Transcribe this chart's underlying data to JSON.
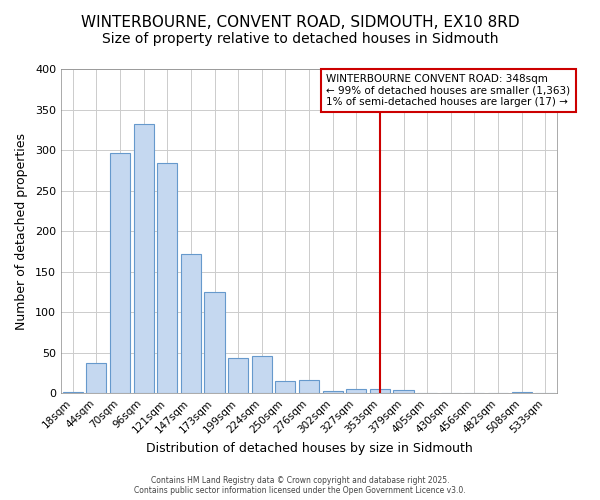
{
  "title": "WINTERBOURNE, CONVENT ROAD, SIDMOUTH, EX10 8RD",
  "subtitle": "Size of property relative to detached houses in Sidmouth",
  "xlabel": "Distribution of detached houses by size in Sidmouth",
  "ylabel": "Number of detached properties",
  "bin_labels": [
    "18sqm",
    "44sqm",
    "70sqm",
    "96sqm",
    "121sqm",
    "147sqm",
    "173sqm",
    "199sqm",
    "224sqm",
    "250sqm",
    "276sqm",
    "302sqm",
    "327sqm",
    "353sqm",
    "379sqm",
    "405sqm",
    "430sqm",
    "456sqm",
    "482sqm",
    "508sqm",
    "533sqm"
  ],
  "values": [
    2,
    38,
    297,
    332,
    284,
    172,
    125,
    43,
    46,
    15,
    16,
    3,
    5,
    5,
    4,
    1,
    1,
    0,
    0,
    2,
    0
  ],
  "bar_color": "#c5d8f0",
  "bar_edge_color": "#6699cc",
  "vline_color": "#cc0000",
  "vline_index": 13,
  "annotation_line1": "WINTERBOURNE CONVENT ROAD: 348sqm",
  "annotation_line2": "← 99% of detached houses are smaller (1,363)",
  "annotation_line3": "1% of semi-detached houses are larger (17) →",
  "annotation_border_color": "#cc0000",
  "ylim": [
    0,
    400
  ],
  "yticks": [
    0,
    50,
    100,
    150,
    200,
    250,
    300,
    350,
    400
  ],
  "grid_color": "#cccccc",
  "bg_color": "#ffffff",
  "fig_bg_color": "#ffffff",
  "title_fontsize": 11,
  "subtitle_fontsize": 10,
  "axis_label_fontsize": 9,
  "tick_fontsize": 7.5,
  "footer_text": "Contains HM Land Registry data © Crown copyright and database right 2025.\nContains public sector information licensed under the Open Government Licence v3.0."
}
